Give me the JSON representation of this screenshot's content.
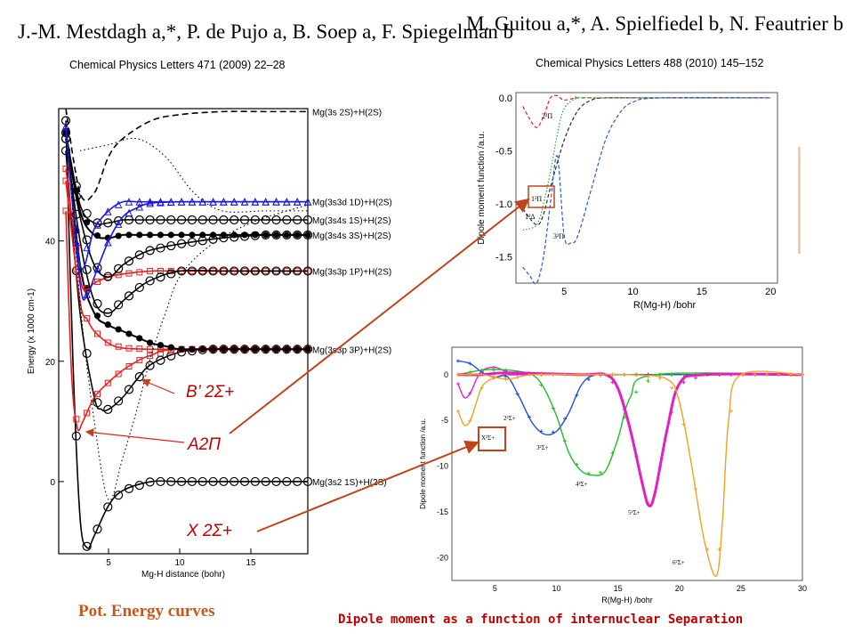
{
  "left_ref": {
    "authors": "J.-M. Mestdagh a,*, P. de Pujo a, B. Soep a, F. Spiegelman b",
    "journal": "Chemical Physics Letters 471 (2009) 22–28"
  },
  "right_ref": {
    "authors": "M. Guitou a,*, A. Spielfiedel b, N. Feautrier b",
    "journal": "Chemical Physics Letters 488 (2010) 145–152"
  },
  "captions": {
    "left": "Pot. Energy curves",
    "right": "Dipole moment as a function of internuclear Separation"
  },
  "state_labels": {
    "b": "B’ 2Σ+",
    "a": "A2Π",
    "x": "X 2Σ+"
  },
  "colors": {
    "arrow": "#c0441a",
    "red": "#e8201e",
    "blue": "#1a1ae0",
    "caption_left": "#c8571b",
    "caption_right": "#c00000"
  },
  "chart_data": [
    {
      "type": "line",
      "xlabel": "Mg-H distance (bohr)",
      "ylabel": "Energy (x 1000 cm-1)",
      "xlim": [
        1.5,
        19
      ],
      "ylim": [
        -12,
        62
      ],
      "xticks": [
        5,
        10,
        15
      ],
      "yticks": [
        0,
        20,
        40
      ],
      "asymptote_labels": [
        "Mg(3s2 1S)+H(2S)",
        "Mg(3s3p 3P)+H(2S)",
        "Mg(3s3p 1P)+H(2S)",
        "Mg(3s4s 3S)+H(2S)",
        "Mg(3s4s 1S)+H(2S)",
        "Mg(3s3d 1D)+H(2S)",
        "Mg(3s 2S)+H(2S)"
      ],
      "series": [
        {
          "style": "black-open",
          "x": [
            2,
            2.5,
            3,
            3.5,
            4,
            5,
            6,
            8,
            10,
            12,
            15,
            19
          ],
          "y": [
            60,
            20,
            -6,
            -11,
            -9,
            -4,
            -1.5,
            0,
            0,
            0,
            0,
            0
          ]
        },
        {
          "style": "black-open",
          "x": [
            2,
            3,
            4,
            4.5,
            5,
            6,
            7,
            8,
            10,
            12,
            15,
            19
          ],
          "y": [
            55,
            28,
            14,
            12,
            12,
            14,
            17,
            19.5,
            21.5,
            22,
            22,
            22
          ]
        },
        {
          "style": "red-square",
          "x": [
            2,
            2.4,
            2.8,
            3.2,
            4,
            5,
            6,
            7,
            8,
            10,
            19
          ],
          "y": [
            45,
            18,
            9,
            10,
            14,
            16.5,
            18.5,
            20,
            21,
            22,
            22
          ]
        },
        {
          "style": "red-square",
          "x": [
            2,
            3,
            3.5,
            4,
            5,
            6,
            8,
            10,
            19
          ],
          "y": [
            50,
            30,
            27,
            25,
            23,
            22.2,
            22,
            22,
            22
          ]
        },
        {
          "style": "black-filled",
          "x": [
            2,
            3,
            4,
            5,
            6,
            7,
            8,
            9,
            10,
            12,
            19
          ],
          "y": [
            58,
            36,
            28,
            26,
            25,
            24,
            23,
            22.5,
            22,
            22,
            22
          ]
        },
        {
          "style": "red-square",
          "x": [
            2,
            3,
            3.5,
            4,
            5,
            6,
            8,
            10,
            19
          ],
          "y": [
            52,
            34,
            32,
            33,
            34,
            34.5,
            35,
            35,
            35
          ]
        },
        {
          "style": "black-open",
          "x": [
            2,
            3,
            4,
            5,
            6,
            7,
            8,
            10,
            13,
            16,
            19
          ],
          "y": [
            57,
            40,
            30,
            28,
            30,
            32,
            33.5,
            35,
            35,
            35,
            35
          ]
        },
        {
          "style": "black-open",
          "x": [
            2,
            3,
            4,
            5,
            6,
            7,
            8,
            10,
            13,
            16,
            19
          ],
          "y": [
            57,
            44,
            36,
            34,
            36,
            37.5,
            38.5,
            39.5,
            40.5,
            41,
            41
          ]
        },
        {
          "style": "black-filled",
          "x": [
            2,
            3,
            4,
            5,
            6,
            7,
            8,
            10,
            13,
            16,
            19
          ],
          "y": [
            58,
            45,
            41,
            40.5,
            41,
            41,
            41,
            41,
            41,
            41,
            41
          ]
        },
        {
          "style": "black-open",
          "x": [
            2,
            3,
            4,
            5,
            6,
            7,
            8,
            10,
            13,
            16,
            19
          ],
          "y": [
            58,
            46,
            43,
            43,
            43.5,
            43.5,
            43.5,
            43.5,
            43.5,
            43.5,
            43.5
          ]
        },
        {
          "style": "blue-triangle",
          "x": [
            2,
            3,
            4,
            5,
            6,
            7,
            8,
            10,
            13,
            16,
            19
          ],
          "y": [
            59,
            36,
            42,
            45,
            46.5,
            46.5,
            46.5,
            46.5,
            46.5,
            46.5,
            46.5
          ]
        },
        {
          "style": "blue-triangle",
          "x": [
            2,
            3,
            3.5,
            4,
            5,
            6,
            7,
            8,
            10,
            13,
            19
          ],
          "y": [
            59,
            33,
            31,
            34,
            40,
            44,
            45.5,
            46.3,
            46.5,
            46.5,
            46.5
          ]
        },
        {
          "style": "black-dashed",
          "x": [
            2,
            3,
            4,
            5,
            6,
            8,
            10,
            13,
            16,
            19
          ],
          "y": [
            62,
            48,
            48,
            54,
            57,
            60,
            61,
            61.5,
            61.5,
            61.5
          ]
        },
        {
          "style": "black-dotted",
          "x": [
            2,
            3,
            4,
            5,
            6,
            7,
            8,
            9,
            10,
            12,
            15,
            19
          ],
          "y": [
            62,
            30,
            10,
            -3,
            4,
            12,
            21,
            28,
            34,
            39,
            43,
            46
          ]
        },
        {
          "style": "black-dotted",
          "x": [
            3,
            5,
            7,
            9,
            11,
            13,
            16,
            19
          ],
          "y": [
            55,
            56,
            57,
            54,
            48,
            45,
            45,
            45
          ]
        }
      ]
    },
    {
      "type": "line",
      "xlabel": "R(Mg-H) /bohr",
      "ylabel": "Dipole moment function /a.u.",
      "xlim": [
        1.5,
        20.5
      ],
      "ylim": [
        -1.75,
        0.05
      ],
      "xticks": [
        5,
        10,
        15,
        20
      ],
      "yticks": [
        0.0,
        -0.5,
        -1.0,
        -1.5
      ],
      "annotations": [
        "2²Π",
        "1²Π",
        "1²Δ",
        "3²Π"
      ],
      "series": [
        {
          "label": "2²Π",
          "color": "#e8201e",
          "x": [
            2,
            2.5,
            3,
            3.5,
            4,
            4.5,
            5,
            6,
            8,
            20
          ],
          "y": [
            -0.08,
            -0.2,
            -0.28,
            -0.18,
            0.0,
            0.02,
            -0.02,
            0.0,
            0.0,
            0.0
          ]
        },
        {
          "label": "1²Π",
          "color": "#2a2a2a",
          "x": [
            2,
            3,
            3.5,
            4,
            5,
            6,
            7,
            8,
            10,
            20
          ],
          "y": [
            -1.05,
            -1.2,
            -1.1,
            -0.85,
            -0.4,
            -0.12,
            -0.02,
            0.0,
            0.0,
            0.0
          ]
        },
        {
          "label": "1²Δ",
          "color": "#22a83a",
          "x": [
            2,
            3,
            3.5,
            4,
            4.5,
            5,
            6,
            7,
            20
          ],
          "y": [
            -1.25,
            -1.2,
            -1.0,
            -0.7,
            -0.35,
            -0.1,
            0.0,
            0.0,
            0.0
          ]
        },
        {
          "label": "3²Π",
          "color": "#2458e0",
          "x": [
            2,
            2.5,
            3,
            3.5,
            4,
            4.5,
            5,
            5.5,
            6,
            7,
            8,
            9,
            10,
            12,
            20
          ],
          "y": [
            -1.6,
            -1.68,
            -1.75,
            -1.5,
            -1.0,
            -0.55,
            -1.3,
            -1.37,
            -1.3,
            -0.85,
            -0.4,
            -0.15,
            -0.04,
            0.0,
            0.0
          ]
        }
      ]
    },
    {
      "type": "line",
      "xlabel": "R(Mg-H) /bohr",
      "ylabel": "Dipole moment function /a.u.",
      "xlim": [
        1.5,
        30
      ],
      "ylim": [
        -22.5,
        3
      ],
      "xticks": [
        5,
        10,
        15,
        20,
        25,
        30
      ],
      "yticks": [
        0,
        -5,
        -10,
        -15,
        -20
      ],
      "annotations": [
        "X²Σ+",
        "2²Σ+",
        "3²Σ+",
        "4²Σ+",
        "5²Σ+",
        "6²Σ+"
      ],
      "series": [
        {
          "label": "X²Σ+",
          "color": "#f5a020",
          "x": [
            2,
            2.5,
            3,
            3.5,
            4,
            5,
            6,
            8,
            30
          ],
          "y": [
            -4,
            -5.5,
            -5,
            -3,
            -1.2,
            -0.3,
            0,
            0,
            0
          ]
        },
        {
          "label": "2²Σ+",
          "color": "#e020e0",
          "x": [
            2,
            2.5,
            3,
            3.5,
            4,
            5,
            6,
            7,
            8,
            30
          ],
          "y": [
            -1,
            -2.5,
            -2,
            -0.5,
            0.5,
            0.8,
            0.3,
            0,
            0,
            0
          ]
        },
        {
          "label": "3²Σ+",
          "color": "#2050e0",
          "x": [
            2,
            3,
            4,
            5,
            6,
            7,
            8,
            9,
            10,
            11,
            12,
            13,
            15,
            30
          ],
          "y": [
            1.5,
            1.2,
            0.2,
            -0.3,
            -0.2,
            -2.5,
            -5.2,
            -6.5,
            -6.2,
            -4.2,
            -1.2,
            -0.1,
            0,
            0
          ]
        },
        {
          "label": "4²Σ+",
          "color": "#20c020",
          "x": [
            2,
            4,
            6,
            8,
            9,
            10,
            11,
            12,
            13,
            14,
            15,
            16,
            18,
            30
          ],
          "y": [
            0,
            0.5,
            0.5,
            0,
            -1.5,
            -4.5,
            -8.5,
            -10.5,
            -11,
            -10.5,
            -7,
            -2.5,
            0,
            0
          ]
        },
        {
          "label": "5²Σ+",
          "color": "#e020c0",
          "x": [
            2,
            4,
            6,
            12,
            14,
            15,
            16,
            17,
            17.5,
            18,
            19,
            20,
            22,
            30
          ],
          "y": [
            0,
            0,
            0.2,
            0,
            0,
            -1.5,
            -6,
            -12,
            -14.3,
            -13,
            -6,
            -1,
            0,
            0
          ]
        },
        {
          "label": "6²Σ+",
          "color": "#f5a020",
          "x": [
            2,
            4,
            6,
            8,
            12,
            16,
            19,
            20,
            21,
            22,
            23,
            23.5,
            24,
            25,
            30
          ],
          "y": [
            0,
            0,
            -0.5,
            0,
            0,
            0,
            -0.5,
            -3,
            -10,
            -18,
            -22,
            -16,
            -5,
            0,
            0
          ]
        }
      ]
    }
  ]
}
